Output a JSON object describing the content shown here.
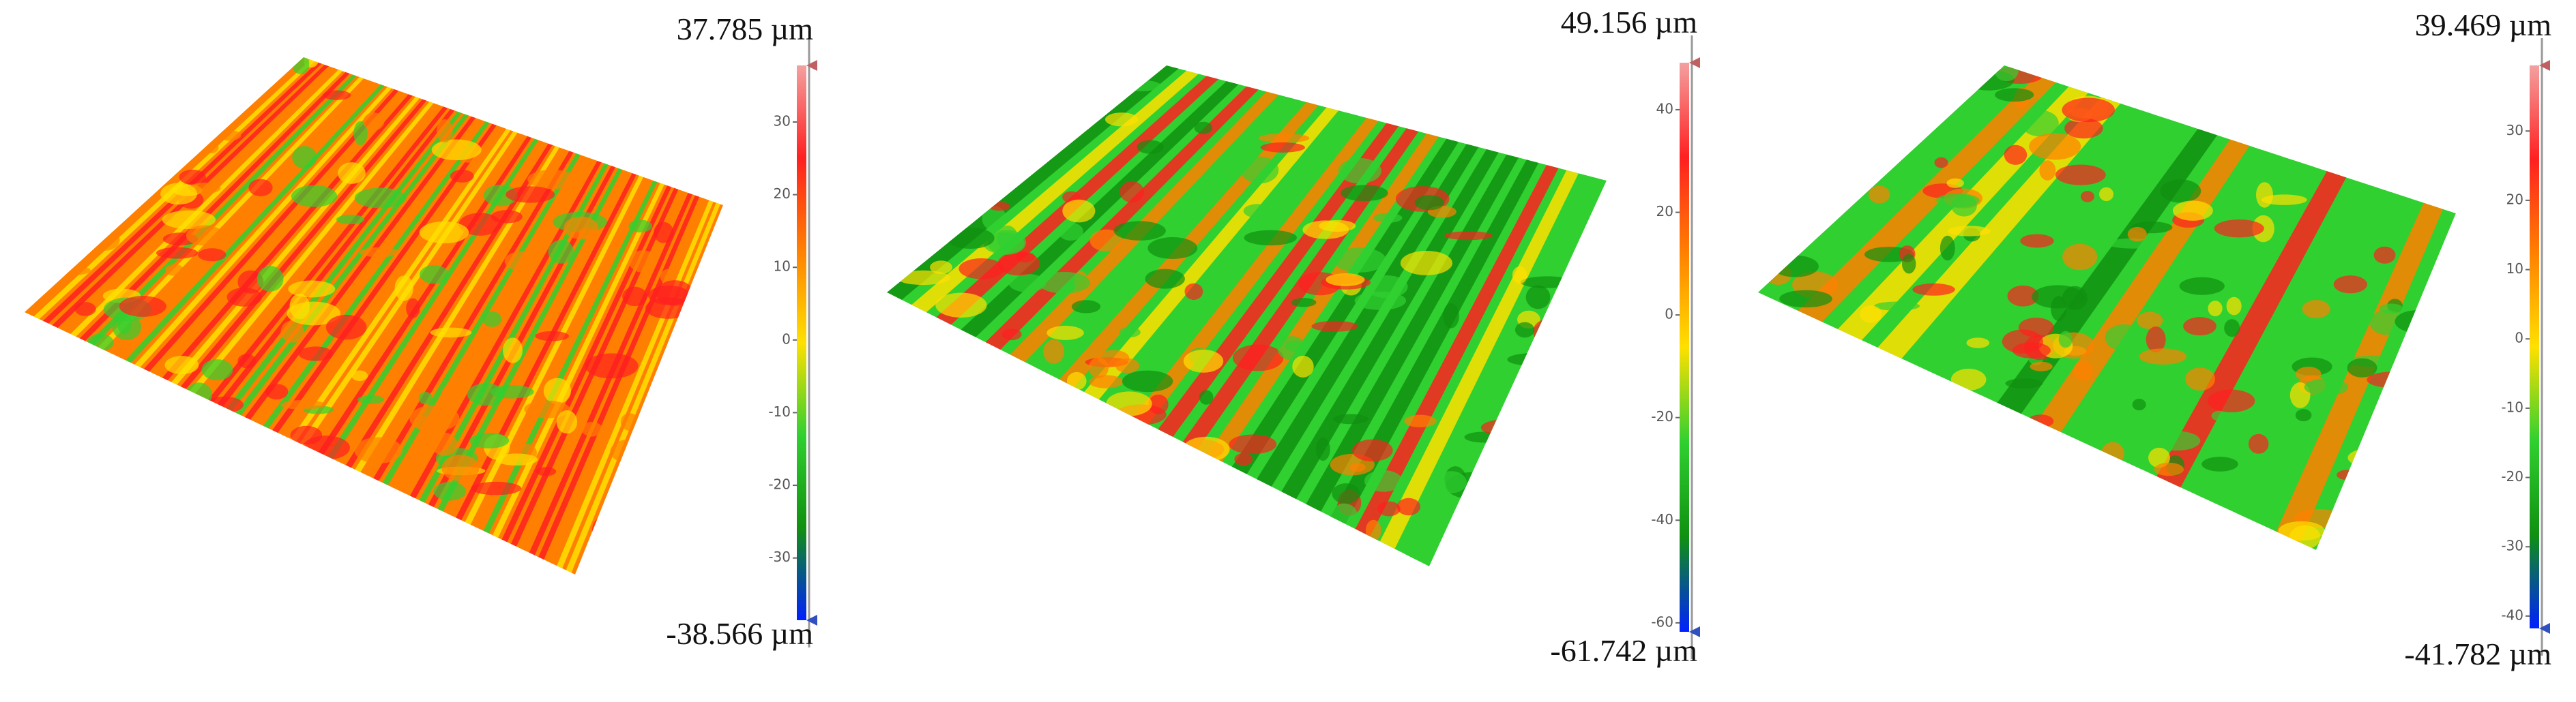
{
  "chart_data": [
    {
      "type": "surface",
      "colorbar": {
        "max": {
          "value": 37.785,
          "label": "37.785 µm"
        },
        "min": {
          "value": -38.566,
          "label": "-38.566 µm"
        },
        "ticks": [
          30,
          20,
          10,
          0,
          -10,
          -20,
          -30
        ]
      },
      "colormap": [
        "#f4a0a0",
        "#ff2020",
        "#ff8000",
        "#ffe000",
        "#30d030",
        "#109010",
        "#0020ff"
      ]
    },
    {
      "type": "surface",
      "colorbar": {
        "max": {
          "value": 49.156,
          "label": "49.156 µm"
        },
        "min": {
          "value": -61.742,
          "label": "-61.742 µm"
        },
        "ticks": [
          40,
          20,
          0,
          -20,
          -40,
          -60
        ]
      },
      "colormap": [
        "#f4a0a0",
        "#ff2020",
        "#ff8000",
        "#ffe000",
        "#30d030",
        "#109010",
        "#0020ff"
      ]
    },
    {
      "type": "surface",
      "colorbar": {
        "max": {
          "value": 39.469,
          "label": "39.469 µm"
        },
        "min": {
          "value": -41.782,
          "label": "-41.782 µm"
        },
        "ticks": [
          30,
          20,
          10,
          0,
          -10,
          -20,
          -30,
          -40
        ]
      },
      "colormap": [
        "#f4a0a0",
        "#ff2020",
        "#ff8000",
        "#ffe000",
        "#30d030",
        "#109010",
        "#0020ff"
      ]
    }
  ]
}
